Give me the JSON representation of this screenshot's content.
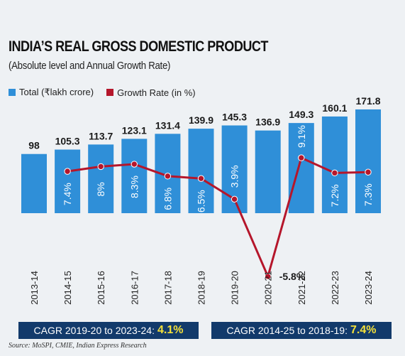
{
  "chart_data": {
    "type": "bar",
    "title": "INDIA’S REAL GROSS DOMESTIC PRODUCT",
    "subtitle": "(Absolute level and Annual Growth Rate)",
    "categories": [
      "2013-14",
      "2014-15",
      "2015-16",
      "2016-17",
      "2017-18",
      "2018-19",
      "2019-20",
      "2020-21",
      "2021-22",
      "2022-23",
      "2023-24"
    ],
    "series": [
      {
        "name": "Total (₹lakh crore)",
        "type": "bar",
        "color": "#2f8fd8",
        "values": [
          98,
          105.3,
          113.7,
          123.1,
          131.4,
          139.9,
          145.3,
          136.9,
          149.3,
          160.1,
          171.8
        ],
        "labels": [
          "98",
          "105.3",
          "113.7",
          "123.1",
          "131.4",
          "139.9",
          "145.3",
          "136.9",
          "149.3",
          "160.1",
          "171.8"
        ]
      },
      {
        "name": "Growth Rate (in %)",
        "type": "line",
        "color": "#b5162b",
        "values": [
          null,
          7.4,
          8,
          8.3,
          6.8,
          6.5,
          3.9,
          -5.8,
          9.1,
          7.2,
          7.3
        ],
        "labels": [
          "",
          "7.4%",
          "8%",
          "8.3%",
          "6.8%",
          "6.5%",
          "3.9%",
          "-5.8%",
          "9.1%",
          "7.2%",
          "7.3%"
        ]
      }
    ],
    "legend_position": "top-left",
    "grid": false
  },
  "cagr": {
    "left_label": "CAGR 2019-20 to 2023-24:",
    "left_value": "4.1%",
    "right_label": "CAGR 2014-25 to 2018-19:",
    "right_value": "7.4%"
  },
  "source": "Source: MoSPI, CMIE, Indian Express Research"
}
